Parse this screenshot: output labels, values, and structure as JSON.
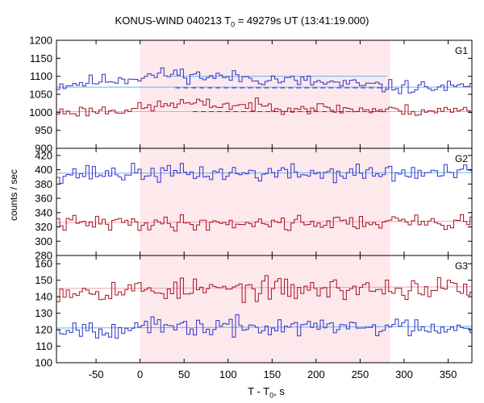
{
  "title": {
    "pre": "KONUS-WIND 040213 T",
    "sub": "0",
    "post": " = 49279s UT (13:41:19.000)"
  },
  "ylabel": "counts / sec",
  "xlabel": {
    "pre": "T - T",
    "sub": "0",
    "post": ", s"
  },
  "colors": {
    "blue": "#3030c8",
    "red": "#a81020",
    "fit_blue": "#5cb8f0",
    "fit_red": "#f0a0b0",
    "shade": "#fde8ec"
  },
  "chart_data": [
    {
      "type": "line",
      "panel": "G1",
      "xlim": [
        -95,
        377
      ],
      "ylim": [
        900,
        1200
      ],
      "xticks": [
        -50,
        0,
        50,
        100,
        150,
        200,
        250,
        300,
        350
      ],
      "yticks": [
        900,
        950,
        1000,
        1050,
        1100,
        1150,
        1200
      ],
      "shaded_interval": [
        0,
        284
      ],
      "series": [
        {
          "color": "blue",
          "x_start": -95,
          "x_end": 377,
          "bin": 3.7,
          "levels": [
            [
              -95,
              1075
            ],
            [
              40,
              1108
            ],
            [
              70,
              1100
            ],
            [
              130,
              1095
            ],
            [
              284,
              1070
            ],
            [
              377,
              1068
            ]
          ],
          "amp": 20,
          "seed": 11
        },
        {
          "color": "red",
          "x_start": -95,
          "x_end": 377,
          "bin": 3.7,
          "levels": [
            [
              -95,
              1000
            ],
            [
              0,
              1010
            ],
            [
              40,
              1025
            ],
            [
              100,
              1020
            ],
            [
              284,
              1005
            ],
            [
              377,
              1005
            ]
          ],
          "amp": 17,
          "seed": 23
        }
      ],
      "fits": [
        {
          "color": "fit_blue",
          "points": [
            [
              -95,
              1070
            ],
            [
              377,
              1070
            ]
          ]
        },
        {
          "color": "fit_blue",
          "points": [
            [
              35,
              1100
            ],
            [
              280,
              1100
            ]
          ]
        },
        {
          "color": "fit_red",
          "points": [
            [
              -95,
              1002
            ],
            [
              377,
              1002
            ]
          ]
        }
      ],
      "dashed": [
        {
          "color": "blue",
          "points": [
            [
              40,
              1068
            ],
            [
              280,
              1068
            ]
          ]
        },
        {
          "color": "red",
          "points": [
            [
              60,
              1002
            ],
            [
              280,
              1002
            ]
          ]
        }
      ]
    },
    {
      "type": "line",
      "panel": "G2",
      "xlim": [
        -95,
        377
      ],
      "ylim": [
        280,
        430
      ],
      "xticks": [
        -50,
        0,
        50,
        100,
        150,
        200,
        250,
        300,
        350
      ],
      "yticks": [
        280,
        300,
        320,
        340,
        360,
        380,
        400,
        420
      ],
      "shaded_interval": [
        0,
        284
      ],
      "series": [
        {
          "color": "blue",
          "x_start": -95,
          "x_end": 377,
          "bin": 3.7,
          "levels": [
            [
              -95,
              395
            ],
            [
              377,
              395
            ]
          ],
          "amp": 13,
          "seed": 37
        },
        {
          "color": "red",
          "x_start": -95,
          "x_end": 377,
          "bin": 3.7,
          "levels": [
            [
              -95,
              325
            ],
            [
              377,
              327
            ]
          ],
          "amp": 11,
          "seed": 41
        }
      ],
      "fits": [
        {
          "color": "fit_blue",
          "points": [
            [
              -95,
              395
            ],
            [
              377,
              396
            ]
          ]
        },
        {
          "color": "fit_red",
          "points": [
            [
              -95,
              326
            ],
            [
              377,
              328
            ]
          ]
        }
      ],
      "dashed": []
    },
    {
      "type": "line",
      "panel": "G3",
      "xlim": [
        -95,
        377
      ],
      "ylim": [
        100,
        165
      ],
      "xticks": [
        -50,
        0,
        50,
        100,
        150,
        200,
        250,
        300,
        350
      ],
      "yticks": [
        100,
        110,
        120,
        130,
        140,
        150,
        160
      ],
      "shaded_interval": [
        0,
        284
      ],
      "series": [
        {
          "color": "red",
          "x_start": -95,
          "x_end": 377,
          "bin": 3.7,
          "levels": [
            [
              -95,
              144
            ],
            [
              377,
              145
            ]
          ],
          "amp": 7,
          "seed": 53
        },
        {
          "color": "blue",
          "x_start": -95,
          "x_end": 377,
          "bin": 3.7,
          "levels": [
            [
              -95,
              121
            ],
            [
              377,
              122
            ]
          ],
          "amp": 6,
          "seed": 67
        }
      ],
      "fits": [
        {
          "color": "fit_red",
          "points": [
            [
              -95,
              145
            ],
            [
              377,
              146
            ]
          ]
        },
        {
          "color": "fit_blue",
          "points": [
            [
              -95,
              121
            ],
            [
              377,
              122
            ]
          ]
        }
      ],
      "dashed": []
    }
  ]
}
